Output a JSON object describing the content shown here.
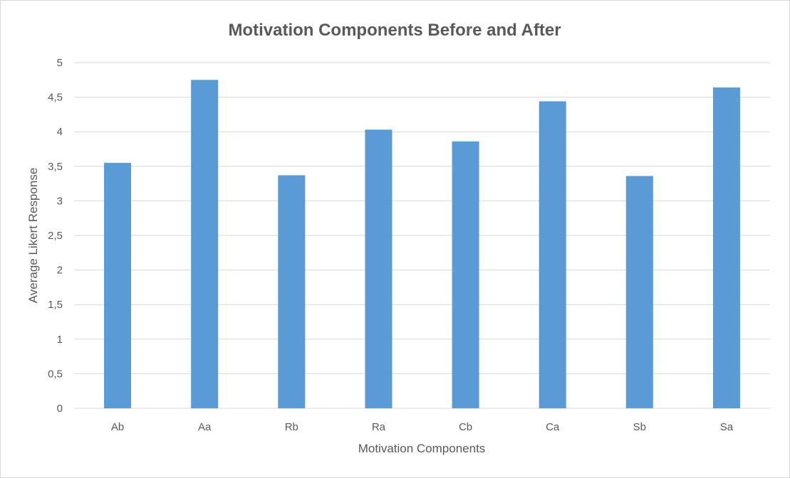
{
  "chart_data": {
    "type": "bar",
    "title": "Motivation Components Before and After",
    "xlabel": "Motivation Components",
    "ylabel": "Average Likert Response",
    "categories": [
      "Ab",
      "Aa",
      "Rb",
      "Ra",
      "Cb",
      "Ca",
      "Sb",
      "Sa"
    ],
    "values": [
      3.55,
      4.75,
      3.37,
      4.03,
      3.86,
      4.44,
      3.36,
      4.64
    ],
    "ylim": [
      0,
      5
    ],
    "yticks": [
      "0",
      "0,5",
      "1",
      "1,5",
      "2",
      "2,5",
      "3",
      "3,5",
      "4",
      "4,5",
      "5"
    ],
    "grid": true,
    "legend": "none",
    "colors": {
      "bar": "#5b9bd5",
      "grid": "#d9d9d9",
      "text": "#595959"
    }
  }
}
